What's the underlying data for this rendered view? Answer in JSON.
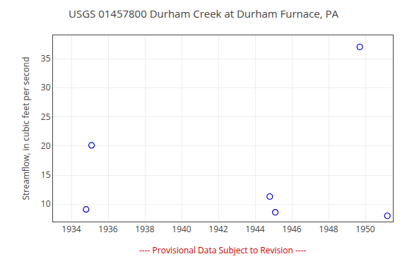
{
  "chart_data": {
    "type": "scatter",
    "title": "USGS 01457800 Durham Creek at Durham Furnace, PA",
    "ylabel": "Streamflow, in cubic feet per second",
    "x": [
      1934.8,
      1935.1,
      1944.8,
      1945.1,
      1949.7,
      1951.2
    ],
    "values": [
      9.1,
      20.1,
      11.3,
      8.6,
      37.0,
      8.0
    ],
    "color": "#0000cc",
    "marker": "open circle",
    "xlim": [
      1933.0,
      1951.5
    ],
    "ylim": [
      7.0,
      39.0
    ],
    "xticks": [
      1934,
      1936,
      1938,
      1940,
      1942,
      1944,
      1946,
      1948,
      1950
    ],
    "yticks": [
      10,
      15,
      20,
      25,
      30,
      35
    ],
    "grid": true,
    "annotations": [
      {
        "text": "---- Provisional Data Subject to Revision ----",
        "color": "#cc0000"
      }
    ]
  }
}
